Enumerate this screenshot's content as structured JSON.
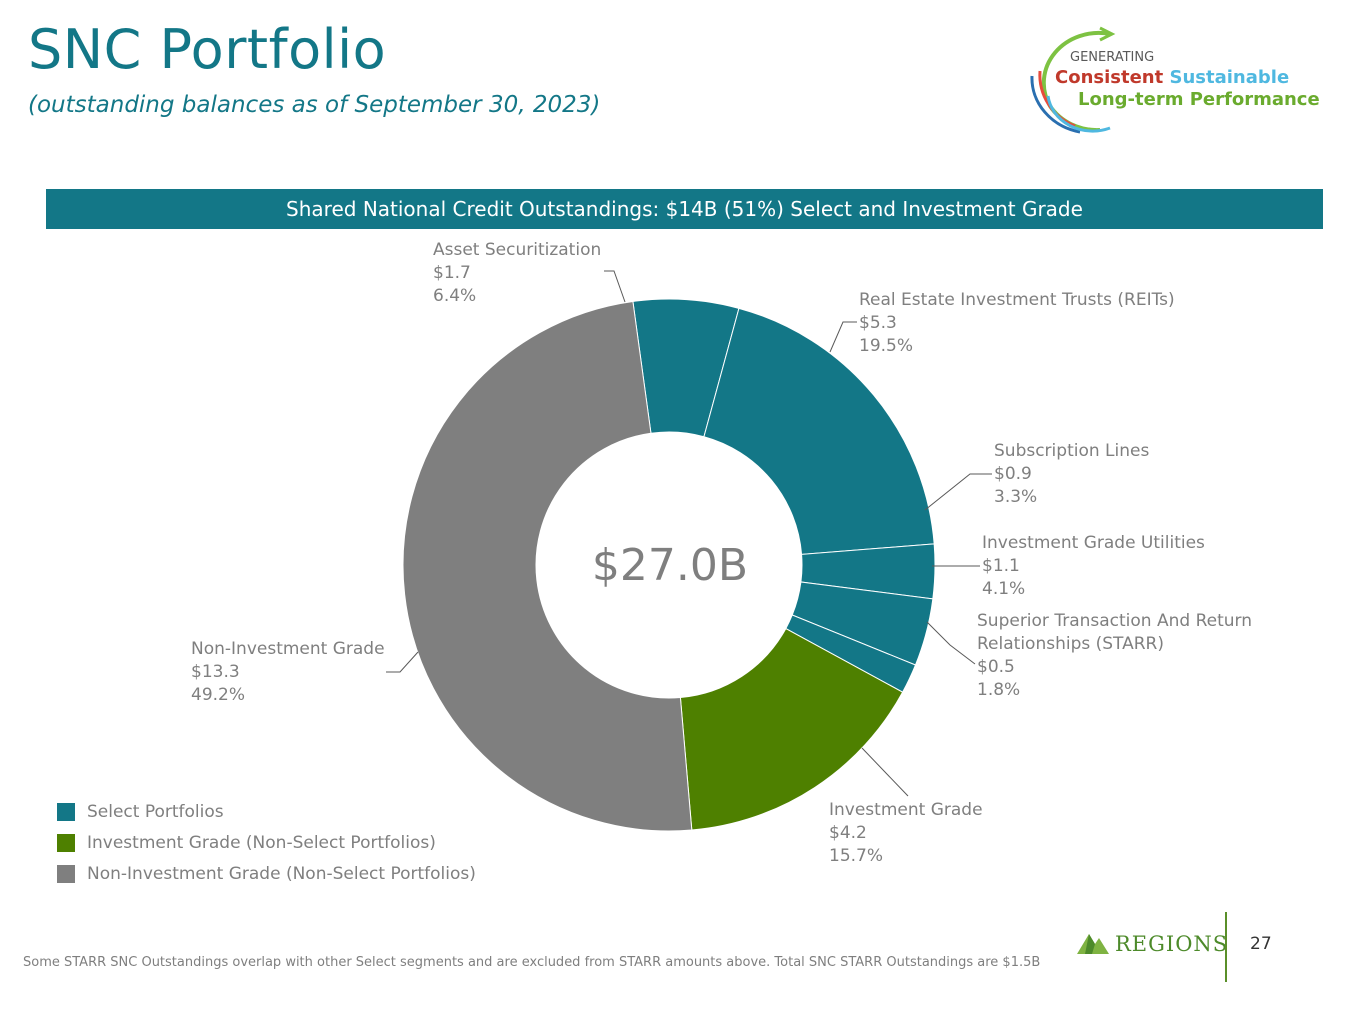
{
  "header": {
    "title": "SNC Portfolio",
    "subtitle": "(outstanding balances as of September 30, 2023)"
  },
  "logo": {
    "generating": "GENERATING",
    "word_consistent": "Consistent",
    "word_sustainable": "Sustainable",
    "line2": "Long-term Performance"
  },
  "banner": {
    "text": "Shared National Credit Outstandings: $14B (51%) Select and Investment Grade"
  },
  "chart_data": {
    "type": "pie",
    "donut": true,
    "center_label": "$27.0B",
    "slices": [
      {
        "label": "Asset Securitization",
        "value": 1.7,
        "value_text": "$1.7",
        "percent": 6.4,
        "percent_text": "6.4%",
        "group": "select"
      },
      {
        "label": "Real Estate Investment Trusts (REITs)",
        "value": 5.3,
        "value_text": "$5.3",
        "percent": 19.5,
        "percent_text": "19.5%",
        "group": "select"
      },
      {
        "label": "Subscription Lines",
        "value": 0.9,
        "value_text": "$0.9",
        "percent": 3.3,
        "percent_text": "3.3%",
        "group": "select"
      },
      {
        "label": "Investment Grade Utilities",
        "value": 1.1,
        "value_text": "$1.1",
        "percent": 4.1,
        "percent_text": "4.1%",
        "group": "select"
      },
      {
        "label": "Superior Transaction And Return",
        "label2": "Relationships (STARR)",
        "value": 0.5,
        "value_text": "$0.5",
        "percent": 1.8,
        "percent_text": "1.8%",
        "group": "select"
      },
      {
        "label": "Investment Grade",
        "value": 4.2,
        "value_text": "$4.2",
        "percent": 15.7,
        "percent_text": "15.7%",
        "group": "ig"
      },
      {
        "label": "Non-Investment Grade",
        "value": 13.3,
        "value_text": "$13.3",
        "percent": 49.2,
        "percent_text": "49.2%",
        "group": "nig"
      }
    ],
    "legend": [
      {
        "label": "Select Portfolios",
        "color": "#137787"
      },
      {
        "label": "Investment Grade (Non-Select Portfolios)",
        "color": "#4e8000"
      },
      {
        "label": "Non-Investment Grade (Non-Select Portfolios)",
        "color": "#7f7f7f"
      }
    ],
    "colors": {
      "select": "#137787",
      "ig": "#4e8000",
      "nig": "#7f7f7f"
    },
    "legend_position": "bottom-left"
  },
  "footnote": "Some STARR SNC Outstandings overlap with other Select segments and are excluded from STARR amounts above.  Total SNC STARR Outstandings are $1.5B",
  "brand": {
    "name": "REGIONS"
  },
  "page_number": "27"
}
